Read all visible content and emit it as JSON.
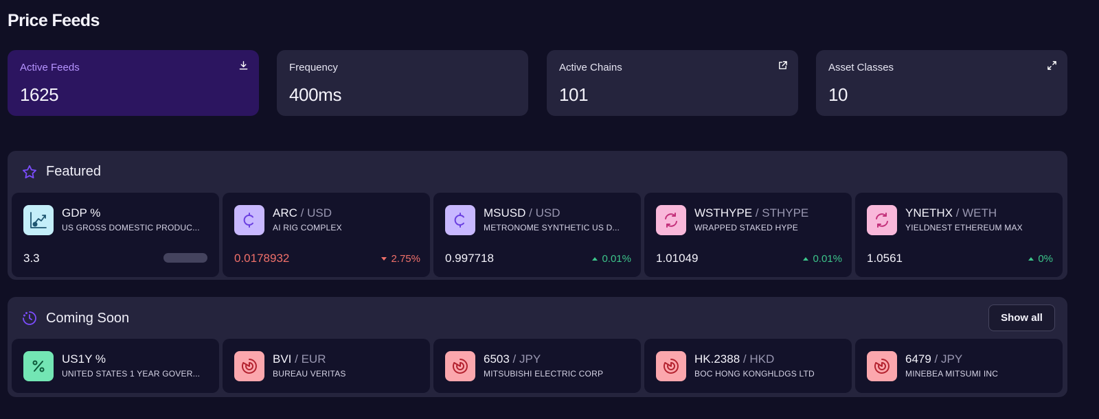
{
  "page": {
    "title": "Price Feeds"
  },
  "stats": [
    {
      "label": "Active Feeds",
      "value": "1625",
      "icon": "download-icon"
    },
    {
      "label": "Frequency",
      "value": "400ms",
      "icon": ""
    },
    {
      "label": "Active Chains",
      "value": "101",
      "icon": "external-link-icon"
    },
    {
      "label": "Asset Classes",
      "value": "10",
      "icon": "expand-icon"
    }
  ],
  "featured": {
    "title": "Featured",
    "icon": "star-icon",
    "cards": [
      {
        "symbol": "GDP %",
        "quote": "",
        "name": "US GROSS DOMESTIC PRODUC...",
        "price": "3.3",
        "change": "",
        "direction": "none",
        "icon": "gdp-chart-icon",
        "icon_bg": "#c4eef9"
      },
      {
        "symbol": "ARC",
        "quote": " / USD",
        "name": "AI RIG COMPLEX",
        "price": "0.0178932",
        "change": "2.75%",
        "direction": "down",
        "icon": "crypto-coin-icon",
        "icon_bg": "#c8b8ff"
      },
      {
        "symbol": "MSUSD",
        "quote": " / USD",
        "name": "METRONOME SYNTHETIC US D...",
        "price": "0.997718",
        "change": "0.01%",
        "direction": "up",
        "icon": "crypto-coin-icon",
        "icon_bg": "#c8b8ff"
      },
      {
        "symbol": "WSTHYPE",
        "quote": " / STHYPE",
        "name": "WRAPPED STAKED HYPE",
        "price": "1.01049",
        "change": "0.01%",
        "direction": "up",
        "icon": "redemption-rate-icon",
        "icon_bg": "#f9b8da"
      },
      {
        "symbol": "YNETHX",
        "quote": " / WETH",
        "name": "YIELDNEST ETHEREUM MAX",
        "price": "1.0561",
        "change": "0%",
        "direction": "up",
        "icon": "redemption-rate-icon",
        "icon_bg": "#f9b8da"
      }
    ]
  },
  "coming_soon": {
    "title": "Coming Soon",
    "icon": "clock-icon",
    "show_all_label": "Show all",
    "cards": [
      {
        "symbol": "US1Y %",
        "quote": "",
        "name": "UNITED STATES 1 YEAR GOVER...",
        "icon": "percent-icon",
        "icon_bg": "#73e6b4"
      },
      {
        "symbol": "BVI",
        "quote": " / EUR",
        "name": "BUREAU VERITAS",
        "icon": "equity-pie-icon",
        "icon_bg": "#fba7ad"
      },
      {
        "symbol": "6503",
        "quote": " / JPY",
        "name": "MITSUBISHI ELECTRIC CORP",
        "icon": "equity-pie-icon",
        "icon_bg": "#fba7ad"
      },
      {
        "symbol": "HK.2388",
        "quote": " / HKD",
        "name": "BOC HONG KONGHLDGS LTD",
        "icon": "equity-pie-icon",
        "icon_bg": "#fba7ad"
      },
      {
        "symbol": "6479",
        "quote": " / JPY",
        "name": "MINEBEA MITSUMI INC",
        "icon": "equity-pie-icon",
        "icon_bg": "#fba7ad"
      }
    ]
  },
  "colors": {
    "background": "#100f24",
    "panel": "#25243d",
    "card": "#13122a",
    "accent_purple": "#2c1560",
    "accent_label": "#b694ff",
    "negative": "#f0706a",
    "positive": "#3cc48a"
  }
}
